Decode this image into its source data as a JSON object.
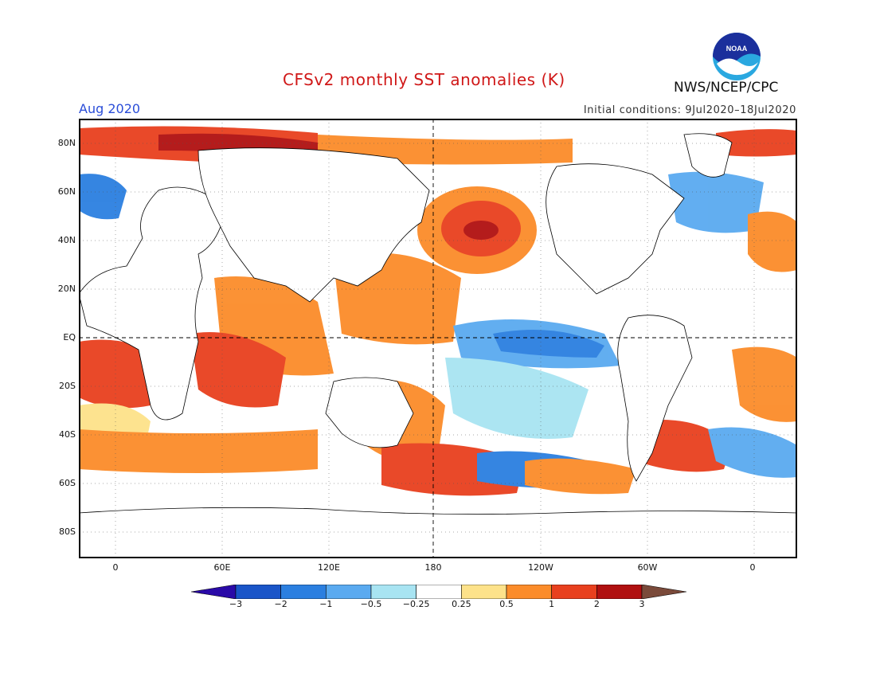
{
  "header": {
    "title": "CFSv2 monthly SST anomalies (K)",
    "org": "NWS/NCEP/CPC",
    "valid_month": "Aug 2020",
    "initial_conditions": "Initial conditions: 9Jul2020–18Jul2020",
    "logo_text": "NOAA"
  },
  "map": {
    "lat_labels": [
      "80N",
      "60N",
      "40N",
      "20N",
      "EQ",
      "20S",
      "40S",
      "60S",
      "80S"
    ],
    "lon_labels": [
      "0",
      "60E",
      "120E",
      "180",
      "120W",
      "60W",
      "0"
    ]
  },
  "colorbar": {
    "labels": [
      "−3",
      "−2",
      "−1",
      "−0.5",
      "−0.25",
      "0.25",
      "0.5",
      "1",
      "2",
      "3"
    ],
    "colors": [
      "#2a0aa8",
      "#1a55c8",
      "#2b7fe0",
      "#5aaaf0",
      "#a8e4f2",
      "#ffffff",
      "#fde28a",
      "#fb8c2a",
      "#e8401e",
      "#b01010",
      "#7a4a3a"
    ]
  }
}
